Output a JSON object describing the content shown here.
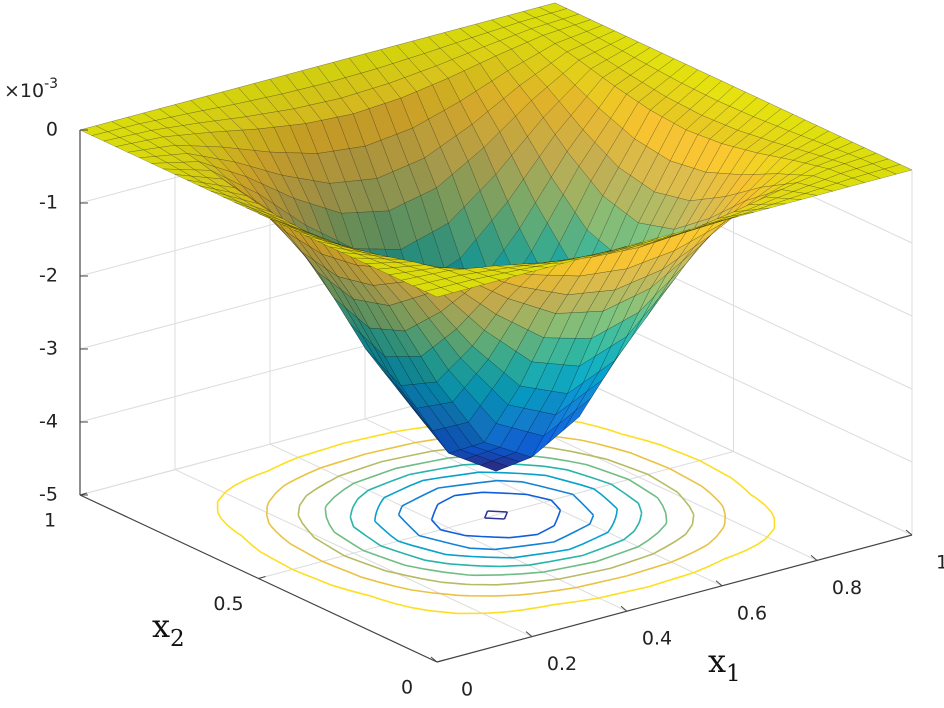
{
  "chart_data": {
    "type": "surface",
    "xlabel": {
      "text": "x",
      "subscript": "1"
    },
    "ylabel": {
      "text": "x",
      "subscript": "2"
    },
    "z_multiplier": {
      "base": "×10",
      "exponent": "-3"
    },
    "x": [
      0,
      0.1,
      0.2,
      0.3,
      0.4,
      0.5,
      0.6,
      0.7,
      0.8,
      0.9,
      1
    ],
    "y": [
      0,
      0.1,
      0.2,
      0.3,
      0.4,
      0.5,
      0.6,
      0.7,
      0.8,
      0.9,
      1
    ],
    "z": [
      [
        0,
        0,
        0,
        0,
        0,
        0,
        0,
        0,
        0,
        0,
        0
      ],
      [
        0,
        -0.04,
        -0.15,
        -0.28,
        -0.38,
        -0.42,
        -0.38,
        -0.28,
        -0.15,
        -0.04,
        0
      ],
      [
        0,
        -0.15,
        -0.53,
        -1.0,
        -1.38,
        -1.52,
        -1.38,
        -1.0,
        -0.53,
        -0.15,
        0
      ],
      [
        0,
        -0.28,
        -1.0,
        -1.88,
        -2.6,
        -2.88,
        -2.6,
        -1.88,
        -1.0,
        -0.28,
        0
      ],
      [
        0,
        -0.38,
        -1.38,
        -2.6,
        -3.6,
        -3.98,
        -3.6,
        -2.6,
        -1.38,
        -0.38,
        0
      ],
      [
        0,
        -0.42,
        -1.52,
        -2.88,
        -3.98,
        -4.4,
        -3.98,
        -2.88,
        -1.52,
        -0.42,
        0
      ],
      [
        0,
        -0.38,
        -1.38,
        -2.6,
        -3.6,
        -3.98,
        -3.6,
        -2.6,
        -1.38,
        -0.38,
        0
      ],
      [
        0,
        -0.28,
        -1.0,
        -1.88,
        -2.6,
        -2.88,
        -2.6,
        -1.88,
        -1.0,
        -0.28,
        0
      ],
      [
        0,
        -0.15,
        -0.53,
        -1.0,
        -1.38,
        -1.52,
        -1.38,
        -1.0,
        -0.53,
        -0.15,
        0
      ],
      [
        0,
        -0.04,
        -0.15,
        -0.28,
        -0.38,
        -0.42,
        -0.38,
        -0.28,
        -0.15,
        -0.04,
        0
      ],
      [
        0,
        0,
        0,
        0,
        0,
        0,
        0,
        0,
        0,
        0,
        0
      ]
    ],
    "xlim": [
      0,
      1
    ],
    "ylim": [
      0,
      1
    ],
    "zlim": [
      -5,
      0
    ],
    "xticks": [
      0,
      0.2,
      0.4,
      0.6,
      0.8,
      1
    ],
    "yticks": [
      0,
      0.5,
      1
    ],
    "zticks": [
      -5,
      -4,
      -3,
      -2,
      -1,
      0
    ],
    "contour_levels": [
      -4.3,
      -3.8,
      -3.3,
      -2.8,
      -2.3,
      -1.8,
      -1.3,
      -0.8,
      -0.3
    ],
    "colormap": [
      "#352a87",
      "#0f5cdd",
      "#1481d6",
      "#06a4ca",
      "#2eb7a4",
      "#87bf77",
      "#d1bb59",
      "#fec832",
      "#f9fb0e"
    ],
    "mesh_color": "#000000",
    "grid": true
  }
}
